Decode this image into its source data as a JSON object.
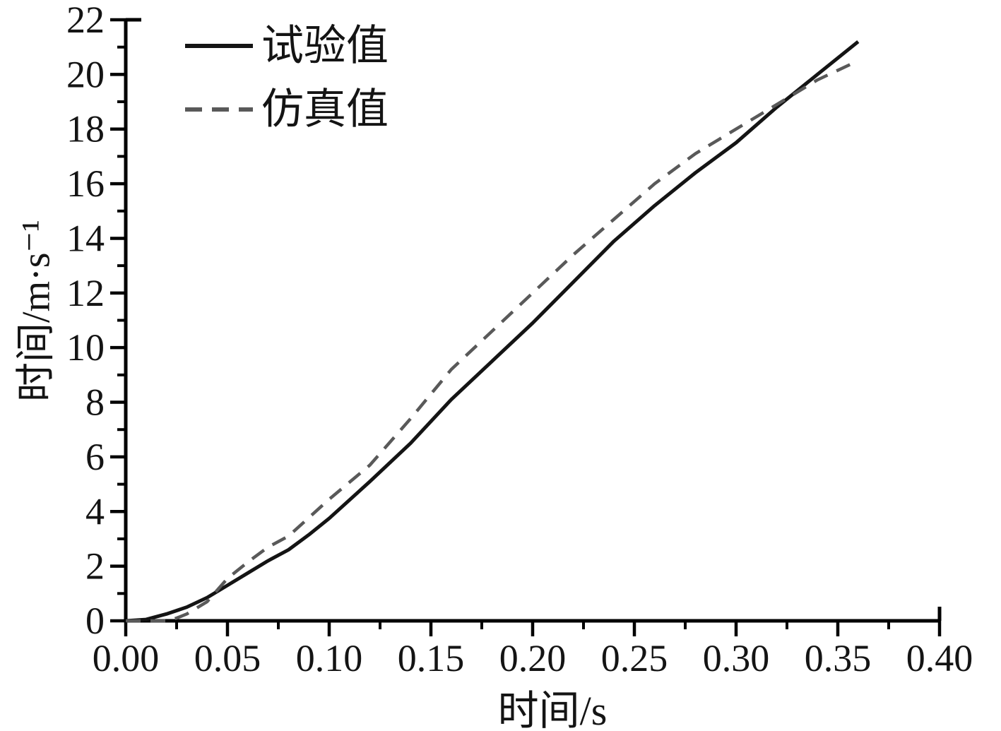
{
  "chart_data": {
    "type": "line",
    "title": "",
    "xlabel": "时间/s",
    "ylabel": "时间/m·s⁻¹",
    "xlim": [
      0,
      0.4
    ],
    "ylim": [
      0,
      22
    ],
    "x_ticks": [
      "0.00",
      "0.05",
      "0.10",
      "0.15",
      "0.20",
      "0.25",
      "0.30",
      "0.35",
      "0.40"
    ],
    "y_ticks": [
      "0",
      "2",
      "4",
      "6",
      "8",
      "10",
      "12",
      "14",
      "16",
      "18",
      "20",
      "22"
    ],
    "grid": false,
    "legend_position": "inside-top-left",
    "axis_color": "#000000",
    "series": [
      {
        "name": "试验值",
        "style": "solid",
        "color": "#141414",
        "x": [
          0,
          0.01,
          0.02,
          0.03,
          0.04,
          0.05,
          0.06,
          0.07,
          0.08,
          0.09,
          0.1,
          0.12,
          0.14,
          0.16,
          0.18,
          0.2,
          0.22,
          0.24,
          0.26,
          0.28,
          0.3,
          0.32,
          0.34,
          0.36
        ],
        "y": [
          0,
          0.05,
          0.25,
          0.5,
          0.85,
          1.3,
          1.75,
          2.2,
          2.6,
          3.15,
          3.75,
          5.1,
          6.5,
          8.1,
          9.5,
          10.9,
          12.4,
          13.9,
          15.2,
          16.4,
          17.5,
          18.8,
          20.0,
          21.2
        ]
      },
      {
        "name": "仿真值",
        "style": "dashed",
        "color": "#595959",
        "x": [
          0,
          0.01,
          0.02,
          0.025,
          0.03,
          0.04,
          0.05,
          0.06,
          0.07,
          0.08,
          0.1,
          0.12,
          0.14,
          0.16,
          0.18,
          0.2,
          0.22,
          0.24,
          0.26,
          0.28,
          0.3,
          0.32,
          0.34,
          0.36
        ],
        "y": [
          0,
          0,
          0,
          0.1,
          0.25,
          0.7,
          1.55,
          2.15,
          2.7,
          3.1,
          4.45,
          5.7,
          7.4,
          9.2,
          10.6,
          12.0,
          13.4,
          14.7,
          16.0,
          17.1,
          18.0,
          18.9,
          19.8,
          20.5
        ]
      }
    ]
  }
}
